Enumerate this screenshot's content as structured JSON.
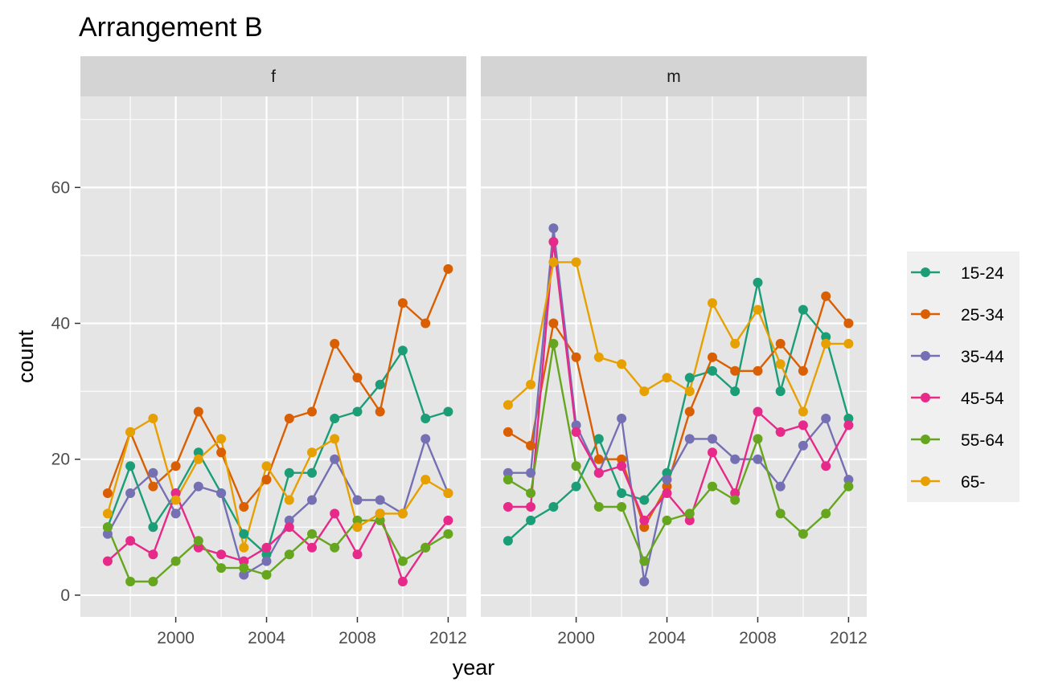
{
  "chart_data": {
    "type": "line",
    "title": "Arrangement B",
    "xlabel": "year",
    "ylabel": "count",
    "x": [
      1997,
      1998,
      1999,
      2000,
      2001,
      2002,
      2003,
      2004,
      2005,
      2006,
      2007,
      2008,
      2009,
      2010,
      2011,
      2012
    ],
    "xlim": [
      1995.8,
      2012.8
    ],
    "ylim": [
      -3.2,
      73.4
    ],
    "x_ticks": [
      2000,
      2004,
      2008,
      2012
    ],
    "y_ticks": [
      0,
      20,
      40,
      60
    ],
    "x_tick_labels": [
      "2000",
      "2004",
      "2008",
      "2012"
    ],
    "y_tick_labels": [
      "0",
      "20",
      "40",
      "60"
    ],
    "grid": true,
    "legend_position": "right",
    "colors": {
      "panel_bg": "#e5e5e5",
      "strip_bg": "#d4d4d4",
      "legend_key_bg": "#f0f0f0",
      "grid": "#ffffff"
    },
    "series": [
      {
        "name": "15-24",
        "color": "#1b9e77"
      },
      {
        "name": "25-34",
        "color": "#d95f02"
      },
      {
        "name": "35-44",
        "color": "#7570b3"
      },
      {
        "name": "45-54",
        "color": "#e7298a"
      },
      {
        "name": "55-64",
        "color": "#66a61e"
      },
      {
        "name": "65-",
        "color": "#e6a002"
      }
    ],
    "panels": [
      {
        "label": "f",
        "values": [
          [
            10,
            19,
            10,
            15,
            21,
            15,
            9,
            6,
            18,
            18,
            26,
            27,
            31,
            36,
            26,
            27
          ],
          [
            15,
            24,
            16,
            19,
            27,
            21,
            13,
            17,
            26,
            27,
            37,
            32,
            27,
            43,
            40,
            48
          ],
          [
            9,
            15,
            18,
            12,
            16,
            15,
            3,
            5,
            11,
            14,
            20,
            14,
            14,
            12,
            23,
            15
          ],
          [
            5,
            8,
            6,
            15,
            7,
            6,
            5,
            7,
            10,
            7,
            12,
            6,
            12,
            2,
            7,
            11
          ],
          [
            10,
            2,
            2,
            5,
            8,
            4,
            4,
            3,
            6,
            9,
            7,
            11,
            11,
            5,
            7,
            9
          ],
          [
            12,
            24,
            26,
            14,
            20,
            23,
            7,
            19,
            14,
            21,
            23,
            10,
            12,
            12,
            17,
            15
          ]
        ]
      },
      {
        "label": "m",
        "values": [
          [
            8,
            11,
            13,
            16,
            23,
            15,
            14,
            18,
            32,
            33,
            30,
            46,
            30,
            42,
            38,
            26
          ],
          [
            24,
            22,
            40,
            35,
            20,
            20,
            10,
            16,
            27,
            35,
            33,
            33,
            37,
            33,
            44,
            40
          ],
          [
            18,
            18,
            54,
            25,
            18,
            26,
            2,
            17,
            23,
            23,
            20,
            20,
            16,
            22,
            26,
            17
          ],
          [
            13,
            13,
            52,
            24,
            18,
            19,
            11,
            15,
            11,
            21,
            15,
            27,
            24,
            25,
            19,
            25
          ],
          [
            17,
            15,
            37,
            19,
            13,
            13,
            5,
            11,
            12,
            16,
            14,
            23,
            12,
            9,
            12,
            16
          ],
          [
            28,
            31,
            49,
            49,
            35,
            34,
            30,
            32,
            30,
            43,
            37,
            42,
            34,
            27,
            37,
            37
          ]
        ]
      }
    ]
  }
}
